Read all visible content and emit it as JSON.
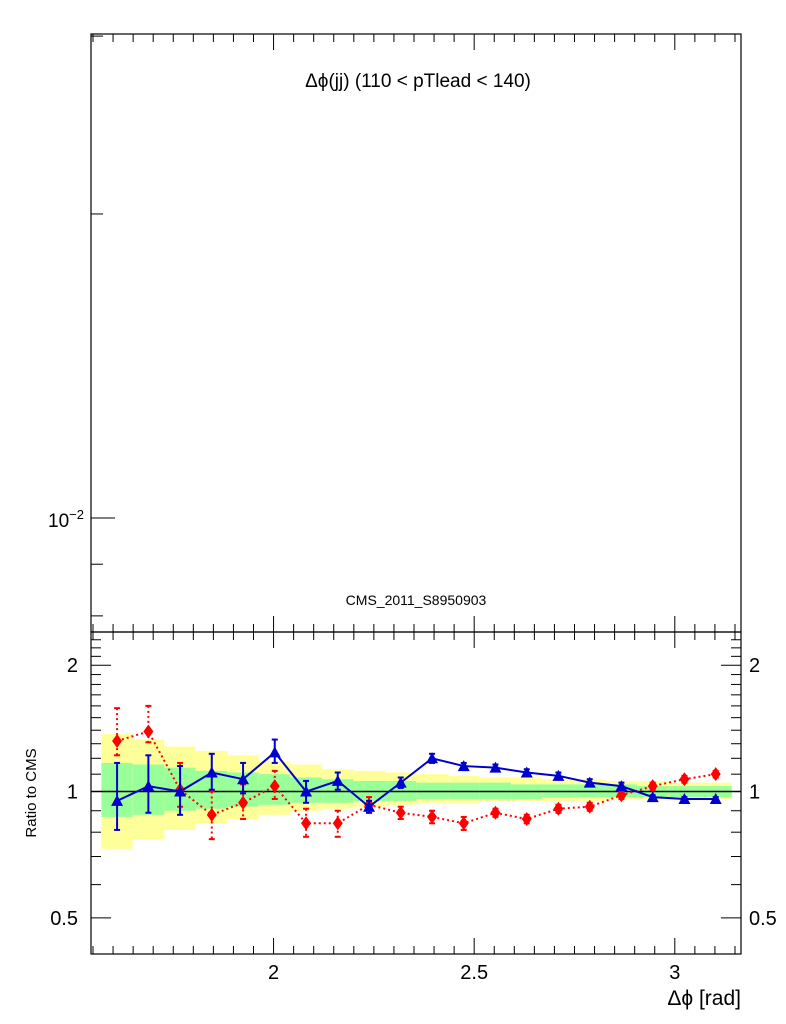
{
  "chart_data": [
    {
      "type": "line",
      "panel": "main",
      "title": "Δϕ(jj) (110 < pTlead <  140)",
      "annotation": "CMS_2011_S8950903",
      "yscale": "log",
      "ytick_labels": [
        {
          "base": "10",
          "exp": "−2",
          "value": 0.01
        }
      ],
      "series": []
    },
    {
      "type": "line",
      "panel": "ratio",
      "ylabel": "Ratio to CMS",
      "xlabel": "Δϕ [rad]",
      "yscale": "log",
      "ylim": [
        0.41,
        2.4
      ],
      "xlim": [
        1.545,
        3.165
      ],
      "xtick_labels": [
        {
          "label": "2",
          "value": 2.0
        },
        {
          "label": "2.5",
          "value": 2.5
        },
        {
          "label": "3",
          "value": 3.0
        }
      ],
      "ytick_labels": [
        {
          "label": "0.5",
          "value": 0.5
        },
        {
          "label": "1",
          "value": 1.0
        },
        {
          "label": "2",
          "value": 2.0
        }
      ],
      "reference_line": 1.0,
      "bins": [
        {
          "lo": 1.571,
          "hi": 1.649
        },
        {
          "lo": 1.649,
          "hi": 1.728
        },
        {
          "lo": 1.728,
          "hi": 1.806
        },
        {
          "lo": 1.806,
          "hi": 1.885
        },
        {
          "lo": 1.885,
          "hi": 1.963
        },
        {
          "lo": 1.963,
          "hi": 2.042
        },
        {
          "lo": 2.042,
          "hi": 2.121
        },
        {
          "lo": 2.121,
          "hi": 2.199
        },
        {
          "lo": 2.199,
          "hi": 2.278
        },
        {
          "lo": 2.278,
          "hi": 2.356
        },
        {
          "lo": 2.356,
          "hi": 2.435
        },
        {
          "lo": 2.435,
          "hi": 2.513
        },
        {
          "lo": 2.513,
          "hi": 2.592
        },
        {
          "lo": 2.592,
          "hi": 2.67
        },
        {
          "lo": 2.67,
          "hi": 2.749
        },
        {
          "lo": 2.749,
          "hi": 2.827
        },
        {
          "lo": 2.827,
          "hi": 2.906
        },
        {
          "lo": 2.906,
          "hi": 2.985
        },
        {
          "lo": 2.985,
          "hi": 3.063
        },
        {
          "lo": 3.063,
          "hi": 3.142
        }
      ],
      "band_total": [
        [
          0.73,
          1.37
        ],
        [
          0.77,
          1.33
        ],
        [
          0.81,
          1.28
        ],
        [
          0.84,
          1.25
        ],
        [
          0.86,
          1.22
        ],
        [
          0.88,
          1.18
        ],
        [
          0.9,
          1.16
        ],
        [
          0.91,
          1.13
        ],
        [
          0.92,
          1.12
        ],
        [
          0.93,
          1.11
        ],
        [
          0.94,
          1.1
        ],
        [
          0.94,
          1.09
        ],
        [
          0.95,
          1.08
        ],
        [
          0.95,
          1.08
        ],
        [
          0.95,
          1.07
        ],
        [
          0.95,
          1.07
        ],
        [
          0.96,
          1.06
        ],
        [
          0.96,
          1.06
        ],
        [
          0.96,
          1.05
        ],
        [
          0.96,
          1.05
        ]
      ],
      "band_stat": [
        [
          0.87,
          1.17
        ],
        [
          0.88,
          1.16
        ],
        [
          0.9,
          1.14
        ],
        [
          0.91,
          1.12
        ],
        [
          0.92,
          1.11
        ],
        [
          0.93,
          1.1
        ],
        [
          0.94,
          1.08
        ],
        [
          0.94,
          1.07
        ],
        [
          0.95,
          1.06
        ],
        [
          0.95,
          1.06
        ],
        [
          0.96,
          1.05
        ],
        [
          0.96,
          1.05
        ],
        [
          0.96,
          1.05
        ],
        [
          0.96,
          1.04
        ],
        [
          0.97,
          1.04
        ],
        [
          0.97,
          1.04
        ],
        [
          0.97,
          1.04
        ],
        [
          0.97,
          1.03
        ],
        [
          0.97,
          1.03
        ],
        [
          0.97,
          1.03
        ]
      ],
      "series": [
        {
          "marker": "diamond",
          "color": "#ff0000",
          "line": "dotted",
          "x": [
            1.61,
            1.688,
            1.767,
            1.846,
            1.924,
            2.003,
            2.081,
            2.16,
            2.238,
            2.317,
            2.395,
            2.474,
            2.553,
            2.631,
            2.71,
            2.788,
            2.867,
            2.945,
            3.024,
            3.102
          ],
          "y": [
            1.32,
            1.39,
            1.01,
            0.88,
            0.94,
            1.03,
            0.84,
            0.84,
            0.93,
            0.89,
            0.87,
            0.84,
            0.89,
            0.86,
            0.91,
            0.92,
            0.98,
            1.03,
            1.07,
            1.1
          ],
          "err_lo": [
            0.1,
            0.08,
            0.09,
            0.11,
            0.08,
            0.07,
            0.06,
            0.06,
            0.04,
            0.03,
            0.03,
            0.03,
            0.02,
            0.02,
            0.02,
            0.02,
            0.02,
            0.02,
            0.02,
            0.02
          ],
          "err_hi": [
            0.26,
            0.21,
            0.16,
            0.12,
            0.1,
            0.09,
            0.07,
            0.06,
            0.04,
            0.03,
            0.03,
            0.03,
            0.02,
            0.02,
            0.02,
            0.02,
            0.02,
            0.02,
            0.02,
            0.02
          ]
        },
        {
          "marker": "triangle",
          "color": "#0000cc",
          "line": "solid",
          "x": [
            1.61,
            1.688,
            1.767,
            1.846,
            1.924,
            2.003,
            2.081,
            2.16,
            2.238,
            2.317,
            2.395,
            2.474,
            2.553,
            2.631,
            2.71,
            2.788,
            2.867,
            2.945,
            3.024,
            3.102
          ],
          "y": [
            0.95,
            1.03,
            1.0,
            1.11,
            1.07,
            1.24,
            1.0,
            1.06,
            0.92,
            1.05,
            1.2,
            1.15,
            1.14,
            1.11,
            1.09,
            1.05,
            1.03,
            0.97,
            0.96,
            0.96
          ],
          "err_lo": [
            0.14,
            0.14,
            0.12,
            0.1,
            0.08,
            0.07,
            0.06,
            0.05,
            0.03,
            0.03,
            0.03,
            0.02,
            0.02,
            0.02,
            0.02,
            0.02,
            0.02,
            0.01,
            0.01,
            0.01
          ],
          "err_hi": [
            0.22,
            0.19,
            0.15,
            0.12,
            0.1,
            0.09,
            0.06,
            0.05,
            0.03,
            0.03,
            0.03,
            0.02,
            0.02,
            0.02,
            0.02,
            0.02,
            0.02,
            0.01,
            0.01,
            0.01
          ]
        }
      ]
    }
  ]
}
